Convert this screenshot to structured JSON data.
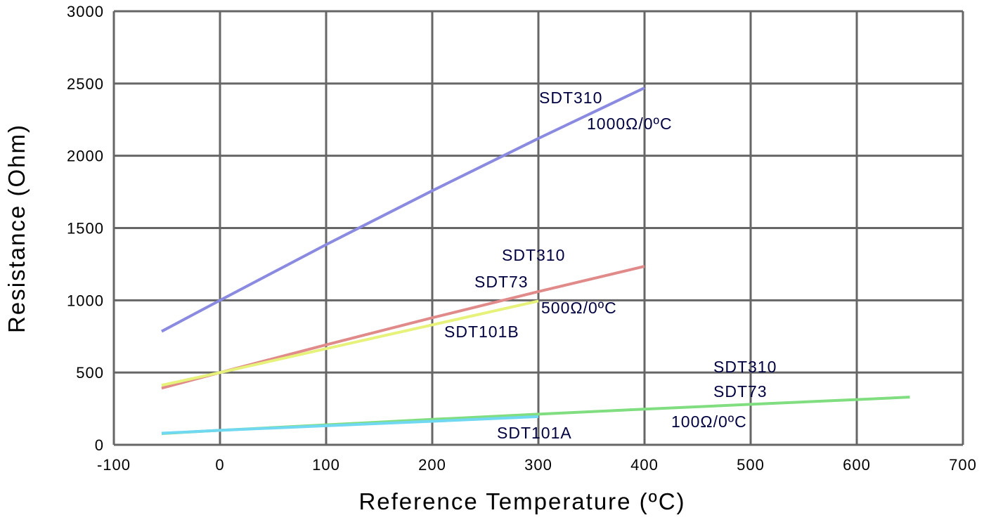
{
  "chart_data": {
    "type": "line",
    "title": "",
    "xlabel": "Reference Temperature (ºC)",
    "ylabel": "Resistance (Ohm)",
    "xlim": [
      -100,
      700
    ],
    "ylim": [
      0,
      3000
    ],
    "xticks": [
      -100,
      0,
      100,
      200,
      300,
      400,
      500,
      600,
      700
    ],
    "yticks": [
      0,
      500,
      1000,
      1500,
      2000,
      2500,
      3000
    ],
    "grid": true,
    "series": [
      {
        "color": "#8a8ae0",
        "x": [
          -55,
          0,
          100,
          200,
          300,
          400
        ],
        "y": [
          785,
          1000,
          1385,
          1758,
          2120,
          2470
        ]
      },
      {
        "color": "#e08a8a",
        "x": [
          -55,
          0,
          100,
          200,
          300,
          400
        ],
        "y": [
          392,
          500,
          692,
          879,
          1060,
          1235
        ]
      },
      {
        "color": "#e6f27a",
        "x": [
          -55,
          0,
          100,
          200,
          300
        ],
        "y": [
          412,
          500,
          665,
          830,
          995
        ]
      },
      {
        "color": "#80dd80",
        "x": [
          -55,
          0,
          100,
          200,
          300,
          400,
          500,
          600,
          650
        ],
        "y": [
          78,
          100,
          138,
          176,
          212,
          247,
          280,
          313,
          330
        ]
      },
      {
        "color": "#70d8f0",
        "x": [
          -55,
          0,
          100,
          200,
          300
        ],
        "y": [
          80,
          100,
          132,
          163,
          195
        ]
      }
    ],
    "annotations": [
      {
        "text": "SDT310"
      },
      {
        "text": "1000Ω/0ºC"
      },
      {
        "text": "SDT310"
      },
      {
        "text": "SDT73"
      },
      {
        "text": "500Ω/0ºC"
      },
      {
        "text": "SDT101B"
      },
      {
        "text": "SDT310"
      },
      {
        "text": "SDT73"
      },
      {
        "text": "100Ω/0ºC"
      },
      {
        "text": "SDT101A"
      }
    ]
  }
}
